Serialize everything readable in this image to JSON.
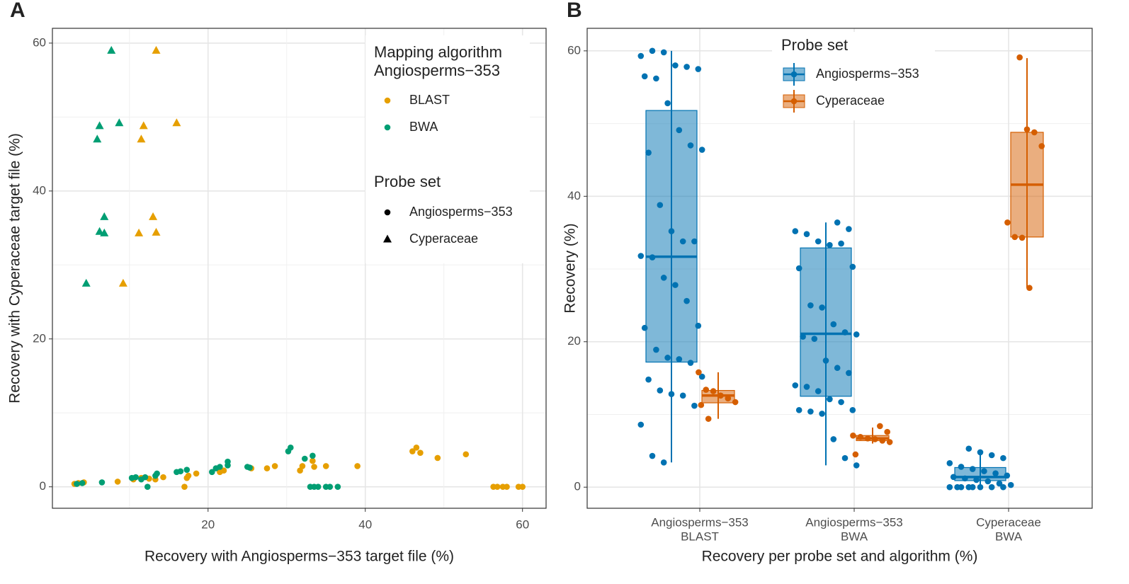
{
  "chart_data": [
    {
      "type": "scatter",
      "panel": "A",
      "xlabel": "Recovery with Angiosperms−353 target file (%)",
      "ylabel": "Recovery with Cyperaceae target file (%)",
      "xlim": [
        0.2,
        63
      ],
      "ylim": [
        -2.9,
        62
      ],
      "xticks": [
        20,
        40,
        60
      ],
      "yticks": [
        0,
        20,
        40,
        60
      ],
      "xminor": [
        10,
        30,
        50
      ],
      "yminor": [
        10,
        30,
        50
      ],
      "grid": true,
      "legend": {
        "color_title": [
          "Mapping algorithm",
          "Angiosperms−353"
        ],
        "color_items": [
          {
            "label": "BLAST",
            "color": "#E69F00"
          },
          {
            "label": "BWA",
            "color": "#009E73"
          }
        ],
        "shape_title": "Probe set",
        "shape_items": [
          {
            "label": "Angiosperms−353",
            "shape": "circle"
          },
          {
            "label": "Cyperaceae",
            "shape": "triangle"
          }
        ]
      },
      "series": [
        {
          "color": "#E69F00",
          "shape": "circle",
          "x": [
            3,
            3.5,
            4.2,
            8.5,
            10.5,
            11.5,
            12.5,
            13.3,
            14.3,
            17,
            17.3,
            17.5,
            18.5,
            21.5,
            22,
            25.5,
            27.5,
            28.5,
            31.7,
            32,
            33.3,
            33.5,
            35,
            39,
            46,
            46.5,
            47,
            49.2,
            52.8,
            56.3,
            56.8,
            57.5,
            58,
            59.5,
            60
          ],
          "y": [
            0.4,
            0.5,
            0.6,
            0.7,
            1.0,
            1.2,
            1.1,
            1.0,
            1.3,
            0,
            1.2,
            1.5,
            1.8,
            2.0,
            2.2,
            2.5,
            2.5,
            2.8,
            2.2,
            2.8,
            3.5,
            2.7,
            2.8,
            2.8,
            4.8,
            5.3,
            4.6,
            3.9,
            4.4,
            0,
            0,
            0,
            0,
            0,
            0
          ]
        },
        {
          "color": "#009E73",
          "shape": "circle",
          "x": [
            3.3,
            4,
            6.5,
            10.3,
            10.8,
            11.5,
            12,
            12.3,
            13.5,
            13.3,
            16,
            16.5,
            17.3,
            20.5,
            21,
            21.5,
            22.5,
            22.5,
            25,
            25.3,
            30.2,
            30.5,
            32.3,
            33.3,
            33,
            33.5,
            34,
            35,
            35.5,
            36.5
          ],
          "y": [
            0.4,
            0.5,
            0.6,
            1.2,
            1.3,
            1.0,
            1.3,
            0,
            1.8,
            1.5,
            2.0,
            2.1,
            2.3,
            2.0,
            2.5,
            2.7,
            2.9,
            3.4,
            2.7,
            2.6,
            4.8,
            5.3,
            3.8,
            4.2,
            0,
            0,
            0,
            0,
            0,
            0
          ]
        },
        {
          "color": "#E69F00",
          "shape": "triangle",
          "x": [
            13.4,
            11.8,
            11.5,
            16,
            13,
            11.2,
            13.4,
            9.2
          ],
          "y": [
            59,
            48.8,
            47,
            49.2,
            36.5,
            34.3,
            34.4,
            27.5
          ]
        },
        {
          "color": "#009E73",
          "shape": "triangle",
          "x": [
            7.7,
            6.2,
            5.9,
            8.7,
            6.8,
            6.2,
            6.8,
            4.5
          ],
          "y": [
            59,
            48.8,
            47,
            49.2,
            36.5,
            34.5,
            34.3,
            27.5
          ]
        }
      ]
    },
    {
      "type": "box",
      "panel": "B",
      "xlabel": "Recovery per probe set and algorithm (%)",
      "ylabel": "Recovery (%)",
      "ylim": [
        -2.9,
        63.1
      ],
      "yticks": [
        0,
        20,
        40,
        60
      ],
      "yminor": [
        10,
        30,
        50
      ],
      "grid": true,
      "categories": [
        [
          "Angiosperms−353",
          "BLAST"
        ],
        [
          "Angiosperms−353",
          "BWA"
        ],
        [
          "Cyperaceae",
          "BWA"
        ]
      ],
      "legend_title": "Probe set",
      "series": [
        {
          "name": "Angiosperms−353",
          "color": "#0072B2",
          "boxes": [
            {
              "low": 3.4,
              "q1": 17.2,
              "median": 31.7,
              "q3": 51.8,
              "high": 60,
              "points": [
                59.3,
                60,
                59.8,
                58,
                57.8,
                57.5,
                56.5,
                56.2,
                52.8,
                49.1,
                47,
                46.4,
                46,
                38.8,
                35.2,
                33.8,
                33.8,
                31.8,
                31.6,
                28.8,
                27.8,
                25.6,
                22.2,
                21.9,
                18.9,
                17.8,
                17.6,
                17.1,
                15.2,
                14.8,
                13.3,
                12.8,
                12.6,
                11.2,
                8.6,
                4.3,
                3.4
              ]
            },
            {
              "low": 3.0,
              "q1": 12.5,
              "median": 21.1,
              "q3": 32.9,
              "high": 36.4,
              "points": [
                36.4,
                35.5,
                35.2,
                34.8,
                33.8,
                33.3,
                33.5,
                30.3,
                30.1,
                25.0,
                24.7,
                22.4,
                21.3,
                21.0,
                20.7,
                20.4,
                17.4,
                16.4,
                15.7,
                14.0,
                13.8,
                13.2,
                12.1,
                11.7,
                10.6,
                10.6,
                10.4,
                10.1,
                6.6,
                4.0,
                3.0
              ]
            },
            {
              "low": 0,
              "q1": 0.9,
              "median": 1.4,
              "q3": 2.7,
              "high": 5.0,
              "points": [
                5.3,
                4.8,
                4.4,
                4.0,
                3.3,
                2.8,
                2.5,
                2.2,
                1.9,
                1.6,
                1.4,
                1.2,
                1.0,
                0.8,
                0.5,
                0.3,
                0,
                0,
                0,
                0,
                0,
                0,
                0,
                0
              ]
            }
          ]
        },
        {
          "name": "Cyperaceae",
          "color": "#D55E00",
          "boxes": [
            {
              "low": 9.4,
              "q1": 11.6,
              "median": 12.6,
              "q3": 13.3,
              "high": 15.8,
              "points": [
                15.8,
                13.4,
                13.2,
                12.6,
                12.2,
                11.7,
                11.3,
                9.4
              ]
            },
            {
              "low": 6.0,
              "q1": 6.4,
              "median": 6.7,
              "q3": 7.1,
              "high": 8.2,
              "points": [
                8.4,
                7.6,
                7.1,
                6.9,
                6.7,
                6.6,
                6.4,
                6.2,
                4.5
              ]
            },
            {
              "low": 27.4,
              "q1": 34.4,
              "median": 41.6,
              "q3": 48.8,
              "high": 59,
              "points": [
                59.1,
                49.2,
                48.8,
                46.9,
                36.4,
                34.4,
                34.3,
                27.4
              ]
            }
          ]
        }
      ]
    }
  ]
}
